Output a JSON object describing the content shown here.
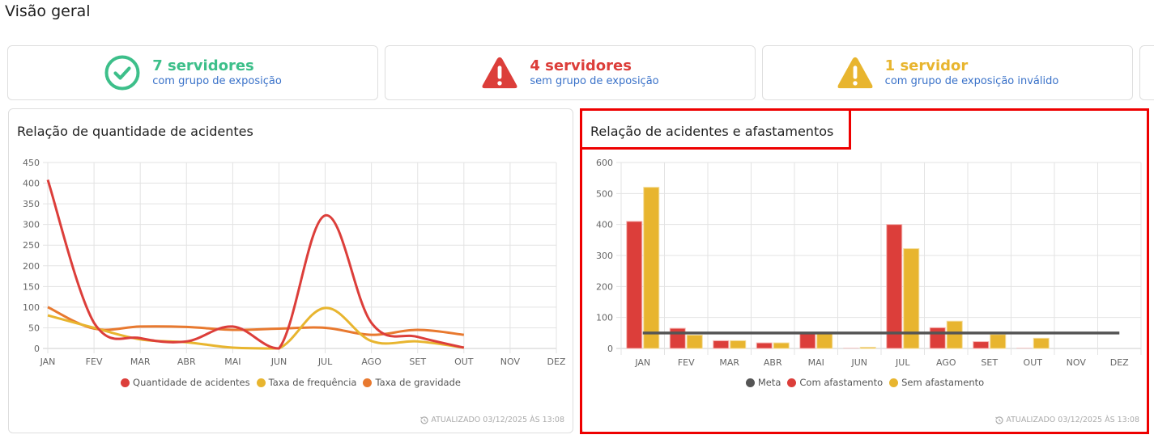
{
  "page": {
    "title": "Visão geral"
  },
  "stats": [
    {
      "value": "7 servidores",
      "description": "com grupo de exposição",
      "icon": "check-circle-icon",
      "color": "#3dbf8a"
    },
    {
      "value": "4 servidores",
      "description": "sem grupo de exposição",
      "icon": "warning-triangle-icon",
      "color": "#dc3e3a"
    },
    {
      "value": "1 servidor",
      "description": "com grupo de exposição inválido",
      "icon": "warning-triangle-icon",
      "color": "#e8b52f"
    }
  ],
  "panels": {
    "accidents": {
      "title": "Relação de quantidade de acidentes",
      "updated": "ATUALIZADO 03/12/2025 ÀS 13:08",
      "legend": [
        {
          "label": "Quantidade de acidentes",
          "color": "#dc3e3a"
        },
        {
          "label": "Taxa de frequência",
          "color": "#e8b52f"
        },
        {
          "label": "Taxa de gravidade",
          "color": "#e8792f"
        }
      ]
    },
    "leaves": {
      "title": "Relação de acidentes e afastamentos",
      "updated": "ATUALIZADO 03/12/2025 ÀS 13:08",
      "legend": [
        {
          "label": "Meta",
          "color": "#555555"
        },
        {
          "label": "Com afastamento",
          "color": "#dc3e3a"
        },
        {
          "label": "Sem afastamento",
          "color": "#e8b52f"
        }
      ]
    }
  },
  "chart_data": [
    {
      "type": "line",
      "title": "Relação de quantidade de acidentes",
      "categories": [
        "JAN",
        "FEV",
        "MAR",
        "ABR",
        "MAI",
        "JUN",
        "JUL",
        "AGO",
        "SET",
        "OUT",
        "NOV",
        "DEZ"
      ],
      "yticks": [
        0,
        50,
        100,
        150,
        200,
        250,
        300,
        350,
        400,
        450
      ],
      "ylim": [
        0,
        450
      ],
      "grid": true,
      "legend_position": "bottom",
      "series": [
        {
          "name": "Quantidade de acidentes",
          "color": "#dc3e3a",
          "values": [
            408,
            62,
            25,
            17,
            53,
            0,
            322,
            62,
            28,
            2,
            null,
            null
          ]
        },
        {
          "name": "Taxa de frequência",
          "color": "#e8b52f",
          "values": [
            80,
            50,
            22,
            15,
            2,
            0,
            98,
            18,
            17,
            2,
            null,
            null
          ]
        },
        {
          "name": "Taxa de gravidade",
          "color": "#e8792f",
          "values": [
            100,
            48,
            53,
            52,
            45,
            48,
            50,
            33,
            45,
            33,
            null,
            null
          ]
        }
      ]
    },
    {
      "type": "bar",
      "title": "Relação de acidentes e afastamentos",
      "categories": [
        "JAN",
        "FEV",
        "MAR",
        "ABR",
        "MAI",
        "JUN",
        "JUL",
        "AGO",
        "SET",
        "OUT",
        "NOV",
        "DEZ"
      ],
      "yticks": [
        0,
        100,
        200,
        300,
        400,
        500,
        600
      ],
      "ylim": [
        0,
        600
      ],
      "grid": true,
      "legend_position": "bottom",
      "series": [
        {
          "name": "Meta",
          "type": "line",
          "color": "#555555",
          "values": [
            50,
            50,
            50,
            50,
            50,
            50,
            50,
            50,
            50,
            50,
            50,
            50
          ]
        },
        {
          "name": "Com afastamento",
          "color": "#dc3e3a",
          "values": [
            410,
            65,
            25,
            18,
            50,
            2,
            400,
            67,
            22,
            2,
            0,
            0
          ]
        },
        {
          "name": "Sem afastamento",
          "color": "#e8b52f",
          "values": [
            520,
            43,
            25,
            18,
            50,
            4,
            322,
            88,
            45,
            33,
            0,
            0
          ]
        }
      ]
    }
  ]
}
